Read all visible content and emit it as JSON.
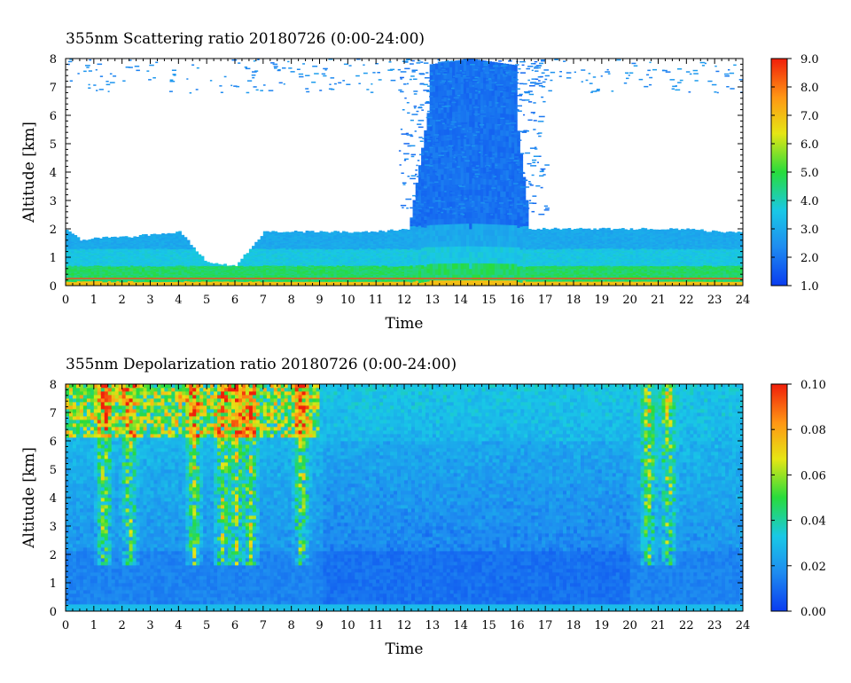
{
  "chart_data": [
    {
      "type": "heatmap",
      "title": "355nm Scattering ratio  20180726 (0:00-24:00)",
      "xlabel": "Time",
      "ylabel": "Altitude [km]",
      "xlim": [
        0,
        24
      ],
      "ylim": [
        0,
        8
      ],
      "x_ticks": [
        "0",
        "1",
        "2",
        "3",
        "4",
        "5",
        "6",
        "7",
        "8",
        "9",
        "10",
        "11",
        "12",
        "13",
        "14",
        "15",
        "16",
        "17",
        "18",
        "19",
        "20",
        "21",
        "22",
        "23",
        "24"
      ],
      "y_ticks": [
        "0",
        "1",
        "2",
        "3",
        "4",
        "5",
        "6",
        "7",
        "8"
      ],
      "colorbar": {
        "range": [
          1.0,
          9.0
        ],
        "ticks": [
          "1.0",
          "2.0",
          "3.0",
          "4.0",
          "5.0",
          "6.0",
          "7.0",
          "8.0",
          "9.0"
        ],
        "colormap": [
          "#0a3cf0",
          "#1e8cf0",
          "#19c8e6",
          "#28dc3c",
          "#e6e614",
          "#ff9614",
          "#f01e0a"
        ]
      },
      "features": {
        "boundary_layer_top_km": [
          [
            0,
            2.0
          ],
          [
            0.5,
            1.6
          ],
          [
            1,
            1.7
          ],
          [
            2,
            1.7
          ],
          [
            3,
            1.8
          ],
          [
            4,
            1.9
          ],
          [
            5,
            0.8
          ],
          [
            6,
            0.7
          ],
          [
            7,
            1.9
          ],
          [
            8,
            1.9
          ],
          [
            9,
            1.9
          ],
          [
            10,
            1.9
          ],
          [
            11,
            1.9
          ],
          [
            12,
            2.0
          ],
          [
            13,
            2.0
          ],
          [
            14,
            2.0
          ],
          [
            15,
            2.0
          ],
          [
            16,
            2.0
          ],
          [
            17,
            2.0
          ],
          [
            18,
            2.0
          ],
          [
            19,
            2.0
          ],
          [
            20,
            2.0
          ],
          [
            21,
            2.0
          ],
          [
            22,
            2.0
          ],
          [
            23,
            1.9
          ],
          [
            24,
            1.9
          ]
        ],
        "elevated_layer_time_range": [
          12.2,
          16.4
        ],
        "elevated_layer_top_km": 8.0
      }
    },
    {
      "type": "heatmap",
      "title": "355nm Depolarization ratio  20180726 (0:00-24:00)",
      "xlabel": "Time",
      "ylabel": "Altitude [km]",
      "xlim": [
        0,
        24
      ],
      "ylim": [
        0,
        8
      ],
      "x_ticks": [
        "0",
        "1",
        "2",
        "3",
        "4",
        "5",
        "6",
        "7",
        "8",
        "9",
        "10",
        "11",
        "12",
        "13",
        "14",
        "15",
        "16",
        "17",
        "18",
        "19",
        "20",
        "21",
        "22",
        "23",
        "24"
      ],
      "y_ticks": [
        "0",
        "1",
        "2",
        "3",
        "4",
        "5",
        "6",
        "7",
        "8"
      ],
      "colorbar": {
        "range": [
          0.0,
          0.1
        ],
        "ticks": [
          "0.00",
          "0.02",
          "0.04",
          "0.06",
          "0.08",
          "0.10"
        ],
        "colormap": [
          "#0a3cf0",
          "#1e8cf0",
          "#19c8e6",
          "#28dc3c",
          "#e6e614",
          "#ff9614",
          "#f01e0a"
        ]
      },
      "features": {
        "high_depol_columns_hours": [
          1.3,
          2.2,
          4.5,
          5.5,
          6.0,
          6.5,
          8.3,
          20.6,
          21.3
        ]
      }
    }
  ]
}
